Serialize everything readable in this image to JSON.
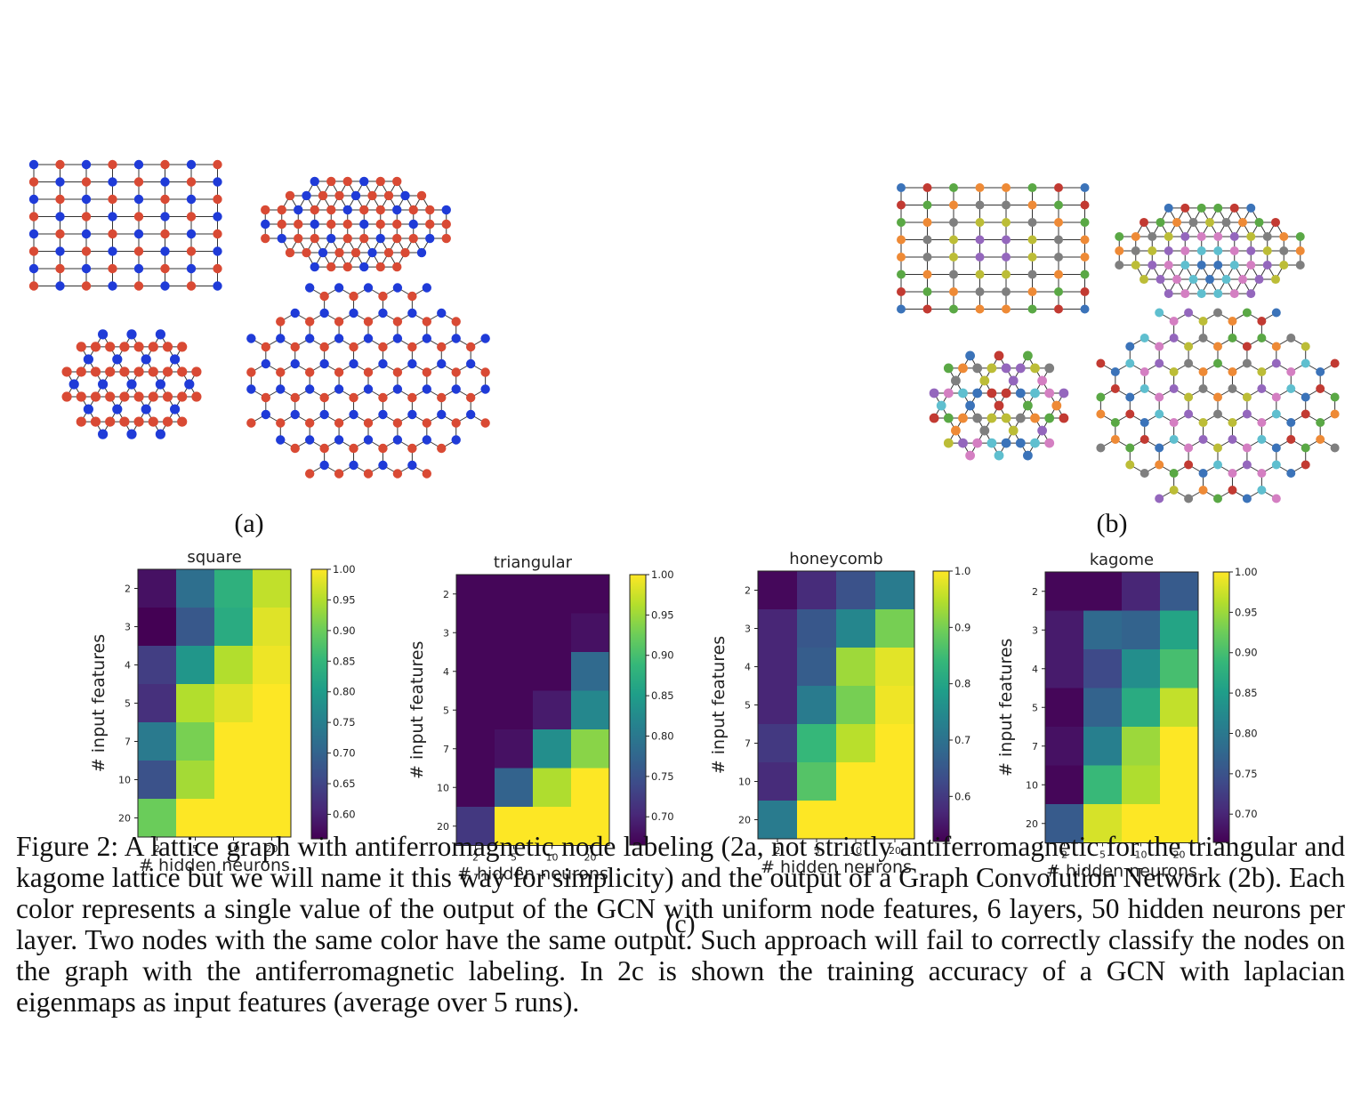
{
  "figure": {
    "subfigures": [
      {
        "label": "(a)"
      },
      {
        "label": "(b)"
      },
      {
        "label": "(c)"
      }
    ],
    "caption": "Figure 2: A lattice graph with antiferromagnetic node labeling (2a, not strictly antiferromagnetic for the triangular and kagome lattice but we will name it this way for simplicity) and the output of a Graph Convolution Network (2b). Each color represents a single value of the output of the GCN with uniform node features, 6 layers, 50 hidden neurons per layer. Two nodes with the same color have the same output. Such approach will fail to correctly classify the nodes on the graph with the antiferromagnetic labeling. In 2c is shown the training accuracy of a GCN with laplacian eigenmaps as input features (average over 5 runs)."
  },
  "colors": {
    "antiferro_a": "#d94a34",
    "antiferro_b": "#1f3bd8",
    "gcn_palette": [
      "#3b73b9",
      "#c23a32",
      "#5aa845",
      "#ee8a36",
      "#7f7f7f",
      "#bcbd37",
      "#9467bd",
      "#d47fc2",
      "#5fbfcf"
    ]
  },
  "graphs": {
    "a": [
      "square",
      "triangular",
      "kagome",
      "honeycomb"
    ],
    "b": [
      "square",
      "triangular",
      "kagome",
      "honeycomb"
    ]
  },
  "chart_data": [
    {
      "type": "heatmap",
      "title": "square",
      "xlabel": "# hidden neurons",
      "ylabel": "# input features",
      "x": [
        "2",
        "5",
        "10",
        "20"
      ],
      "y": [
        "2",
        "3",
        "4",
        "5",
        "7",
        "10",
        "20"
      ],
      "values": [
        [
          0.58,
          0.72,
          0.84,
          0.96
        ],
        [
          0.55,
          0.68,
          0.83,
          0.98
        ],
        [
          0.64,
          0.79,
          0.95,
          0.99
        ],
        [
          0.62,
          0.95,
          0.98,
          1.0
        ],
        [
          0.74,
          0.91,
          1.0,
          1.0
        ],
        [
          0.67,
          0.94,
          1.0,
          1.0
        ],
        [
          0.9,
          1.0,
          1.0,
          1.0
        ]
      ],
      "colorbar": {
        "min": 0.56,
        "max": 1.0,
        "ticks": [
          "1.00",
          "0.95",
          "0.90",
          "0.85",
          "0.80",
          "0.75",
          "0.70",
          "0.65",
          "0.60"
        ]
      }
    },
    {
      "type": "heatmap",
      "title": "triangular",
      "xlabel": "# hidden neurons",
      "ylabel": "# input features",
      "x": [
        "2",
        "5",
        "10",
        "20"
      ],
      "y": [
        "2",
        "3",
        "4",
        "5",
        "7",
        "10",
        "20"
      ],
      "values": [
        [
          0.67,
          0.67,
          0.67,
          0.67
        ],
        [
          0.67,
          0.67,
          0.67,
          0.68
        ],
        [
          0.67,
          0.67,
          0.67,
          0.78
        ],
        [
          0.67,
          0.67,
          0.69,
          0.82
        ],
        [
          0.67,
          0.68,
          0.83,
          0.94
        ],
        [
          0.67,
          0.77,
          0.96,
          1.0
        ],
        [
          0.72,
          1.0,
          1.0,
          1.0
        ]
      ],
      "colorbar": {
        "min": 0.665,
        "max": 1.0,
        "ticks": [
          "1.00",
          "0.95",
          "0.90",
          "0.85",
          "0.80",
          "0.75",
          "0.70"
        ]
      }
    },
    {
      "type": "heatmap",
      "title": "honeycomb",
      "xlabel": "# hidden neurons",
      "ylabel": "# input features",
      "x": [
        "2",
        "5",
        "10",
        "20"
      ],
      "y": [
        "2",
        "3",
        "4",
        "5",
        "7",
        "10",
        "20"
      ],
      "values": [
        [
          0.53,
          0.58,
          0.64,
          0.72
        ],
        [
          0.57,
          0.65,
          0.74,
          0.9
        ],
        [
          0.57,
          0.66,
          0.93,
          0.98
        ],
        [
          0.57,
          0.72,
          0.9,
          0.99
        ],
        [
          0.6,
          0.84,
          0.95,
          1.0
        ],
        [
          0.58,
          0.87,
          1.0,
          1.0
        ],
        [
          0.72,
          1.0,
          1.0,
          1.0
        ]
      ],
      "colorbar": {
        "min": 0.52,
        "max": 1.0,
        "ticks": [
          "1.0",
          "0.9",
          "0.8",
          "0.7",
          "0.6"
        ]
      }
    },
    {
      "type": "heatmap",
      "title": "kagome",
      "xlabel": "# hidden neurons",
      "ylabel": "# input features",
      "x": [
        "2",
        "5",
        "10",
        "20"
      ],
      "y": [
        "2",
        "3",
        "4",
        "5",
        "7",
        "10",
        "20"
      ],
      "values": [
        [
          0.67,
          0.67,
          0.7,
          0.76
        ],
        [
          0.69,
          0.78,
          0.77,
          0.86
        ],
        [
          0.69,
          0.74,
          0.83,
          0.9
        ],
        [
          0.67,
          0.77,
          0.87,
          0.97
        ],
        [
          0.68,
          0.81,
          0.95,
          1.0
        ],
        [
          0.67,
          0.89,
          0.96,
          1.0
        ],
        [
          0.76,
          0.98,
          1.0,
          1.0
        ]
      ],
      "colorbar": {
        "min": 0.665,
        "max": 1.0,
        "ticks": [
          "1.00",
          "0.95",
          "0.90",
          "0.85",
          "0.80",
          "0.75",
          "0.70"
        ]
      }
    }
  ]
}
